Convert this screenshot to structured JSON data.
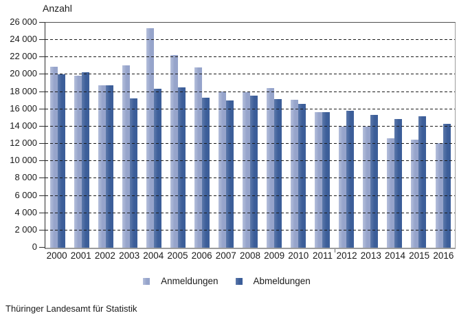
{
  "chart_data": {
    "type": "bar",
    "title": "Anzahl",
    "categories": [
      "2000",
      "2001",
      "2002",
      "2003",
      "2004",
      "2005",
      "2006",
      "2007",
      "2008",
      "2009",
      "2010",
      "2011",
      "2012",
      "2013",
      "2014",
      "2015",
      "2016"
    ],
    "series": [
      {
        "name": "Anmeldungen",
        "color": "#96A4CB",
        "edge_highlight_color": "#B5BFDB",
        "values": [
          20950,
          19900,
          18800,
          21050,
          25350,
          22300,
          20800,
          18050,
          17950,
          18450,
          17100,
          15650,
          14000,
          14000,
          12650,
          12500,
          12050
        ]
      },
      {
        "name": "Abmeldungen",
        "color": "#3C5E99",
        "edge_highlight_color": "#5C78AA",
        "values": [
          20000,
          20250,
          18800,
          17250,
          18400,
          18500,
          17300,
          17000,
          17550,
          17200,
          16600,
          15700,
          15850,
          15350,
          14900,
          15200,
          14300
        ]
      }
    ],
    "xlabel": "",
    "ylabel": "Anzahl",
    "ylim": [
      0,
      26000
    ],
    "ytick_step": 2000,
    "ytick_labels": [
      "26 000",
      "24 000",
      "22 000",
      "20 000",
      "18 000",
      "16 000",
      "14 000",
      "12 000",
      "10 000",
      "8 000",
      "6 000",
      "4 000",
      "2 000",
      "0"
    ],
    "grid": "horizontal-dashed",
    "legend_position": "bottom-center"
  },
  "axis_colors": {
    "gridline": "#1A1A1A",
    "frame_top": "#4D4D4D",
    "frame_right": "#9C9C9C",
    "baseline": "#9C9C9C",
    "y_axis": "#2B2B2B"
  },
  "footer": {
    "source": "Thüringer Landesamt für Statistik"
  }
}
